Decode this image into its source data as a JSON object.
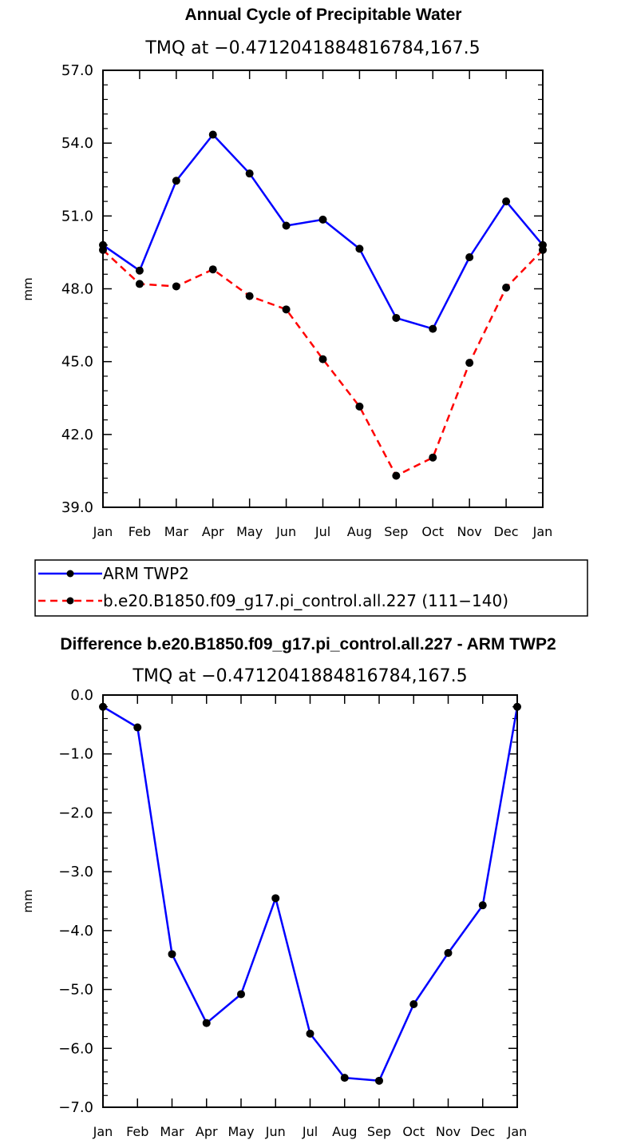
{
  "chart_data": [
    {
      "type": "line",
      "title": "Annual Cycle of Precipitable Water",
      "subtitle": "TMQ at −0.4712041884816784,167.5",
      "xlabel": "",
      "ylabel": "mm",
      "categories": [
        "Jan",
        "Feb",
        "Mar",
        "Apr",
        "May",
        "Jun",
        "Jul",
        "Aug",
        "Sep",
        "Oct",
        "Nov",
        "Dec",
        "Jan"
      ],
      "ylim": [
        39.0,
        57.0
      ],
      "yticks": [
        39.0,
        42.0,
        45.0,
        48.0,
        51.0,
        54.0,
        57.0
      ],
      "ytick_labels": [
        "39.0",
        "42.0",
        "45.0",
        "48.0",
        "51.0",
        "54.0",
        "57.0"
      ],
      "series": [
        {
          "name": "ARM TWP2",
          "color": "#0000ff",
          "dash": "solid",
          "values": [
            49.8,
            48.75,
            52.45,
            54.35,
            52.75,
            50.6,
            50.85,
            49.65,
            46.8,
            46.35,
            49.3,
            51.6,
            49.8
          ]
        },
        {
          "name": "b.e20.B1850.f09_g17.pi_control.all.227 (111−140)",
          "color": "#ff0000",
          "dash": "dashed",
          "values": [
            49.6,
            48.2,
            48.1,
            48.8,
            47.7,
            47.15,
            45.1,
            43.15,
            40.3,
            41.05,
            44.95,
            48.05,
            49.6
          ]
        }
      ],
      "legend": {
        "position": "below"
      }
    },
    {
      "type": "line",
      "title": "Difference b.e20.B1850.f09_g17.pi_control.all.227 - ARM TWP2",
      "subtitle": "TMQ at −0.4712041884816784,167.5",
      "xlabel": "",
      "ylabel": "mm",
      "categories": [
        "Jan",
        "Feb",
        "Mar",
        "Apr",
        "May",
        "Jun",
        "Jul",
        "Aug",
        "Sep",
        "Oct",
        "Nov",
        "Dec",
        "Jan"
      ],
      "ylim": [
        -7.0,
        0.0
      ],
      "yticks": [
        -7.0,
        -6.0,
        -5.0,
        -4.0,
        -3.0,
        -2.0,
        -1.0,
        0.0
      ],
      "ytick_labels": [
        "−7.0",
        "−6.0",
        "−5.0",
        "−4.0",
        "−3.0",
        "−2.0",
        "−1.0",
        "0.0"
      ],
      "series": [
        {
          "name": "Difference",
          "color": "#0000ff",
          "dash": "solid",
          "values": [
            -0.2,
            -0.55,
            -4.4,
            -5.57,
            -5.08,
            -3.45,
            -5.75,
            -6.5,
            -6.55,
            -5.25,
            -4.38,
            -3.57,
            -0.2
          ]
        }
      ]
    }
  ]
}
